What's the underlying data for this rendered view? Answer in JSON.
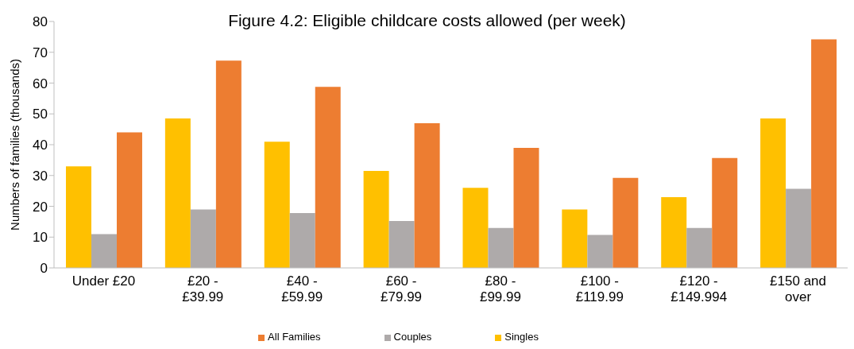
{
  "chart_data": {
    "type": "bar",
    "title": "Figure 4.2: Eligible childcare costs allowed (per week)",
    "ylabel": "Numbers of families (thousands)",
    "categories": [
      "Under £20",
      "£20 - £39.99",
      "£40 - £59.99",
      "£60 - £79.99",
      "£80 - £99.99",
      "£100 - £119.99",
      "£120 - £149.994",
      "£150 and over"
    ],
    "series": [
      {
        "name": "Singles",
        "color": "#ffc000",
        "values": [
          33,
          48.5,
          41,
          31.5,
          26,
          19,
          23,
          48.5
        ]
      },
      {
        "name": "Couples",
        "color": "#aeaaaa",
        "values": [
          11,
          19,
          17.8,
          15.2,
          13,
          10.7,
          13,
          25.7
        ]
      },
      {
        "name": "All Families",
        "color": "#ed7d31",
        "values": [
          44,
          67.3,
          58.8,
          47,
          39,
          29.2,
          35.7,
          74.2
        ]
      }
    ],
    "ylim": [
      0,
      80
    ],
    "yticks": [
      0,
      10,
      20,
      30,
      40,
      50,
      60,
      70,
      80
    ],
    "grid": false,
    "legend": "bottom"
  }
}
